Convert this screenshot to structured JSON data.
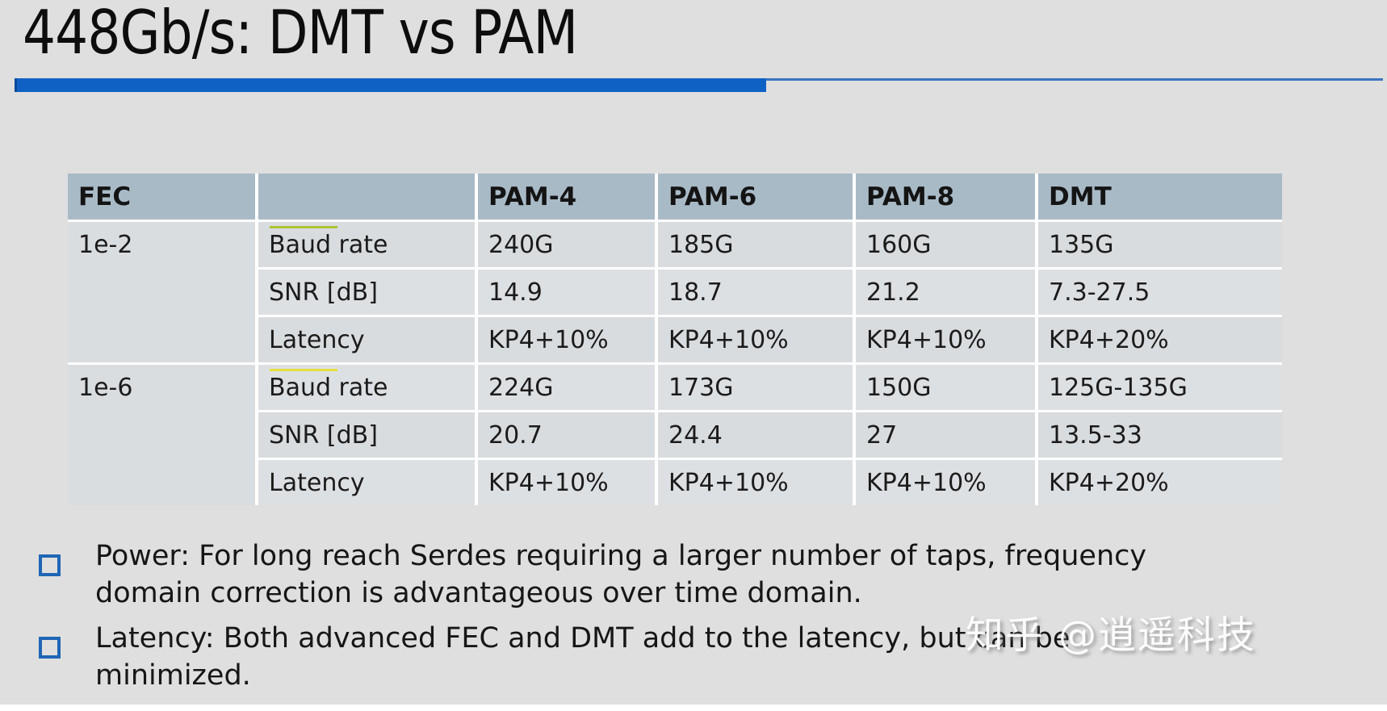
{
  "slide": {
    "title": "448Gb/s: DMT vs PAM",
    "accent_color": "#0f62c4",
    "accent_thin_color": "#3a74c2",
    "background_color": "#dfdfdf",
    "header_bg_color": "#a9bac7"
  },
  "table": {
    "headers": [
      "FEC",
      "",
      "PAM-4",
      "PAM-6",
      "PAM-8",
      "DMT"
    ],
    "groups": [
      {
        "fec": "1e-2",
        "rows": [
          {
            "param": "Baud rate",
            "values": [
              "240G",
              "185G",
              "160G",
              "135G"
            ]
          },
          {
            "param": "SNR [dB]",
            "values": [
              "14.9",
              "18.7",
              "21.2",
              "7.3-27.5"
            ]
          },
          {
            "param": "Latency",
            "values": [
              "KP4+10%",
              "KP4+10%",
              "KP4+10%",
              "KP4+20%"
            ]
          }
        ]
      },
      {
        "fec": "1e-6",
        "rows": [
          {
            "param": "Baud rate",
            "values": [
              "224G",
              "173G",
              "150G",
              "125G-135G"
            ]
          },
          {
            "param": "SNR [dB]",
            "values": [
              "20.7",
              "24.4",
              "27",
              "13.5-33"
            ]
          },
          {
            "param": "Latency",
            "values": [
              "KP4+10%",
              "KP4+10%",
              "KP4+10%",
              "KP4+20%"
            ]
          }
        ]
      }
    ],
    "proofing_marks": [
      {
        "style": "background:#aec432"
      },
      {
        "style": "background:#e6e03a"
      }
    ]
  },
  "bullets": [
    {
      "lines": [
        "Power: For long reach Serdes requiring a larger number of taps, frequency",
        "domain correction is advantageous over time domain."
      ]
    },
    {
      "lines": [
        "Latency: Both advanced FEC and DMT add to the latency, but can be",
        "minimized."
      ]
    }
  ],
  "watermark": "知乎 @逍遥科技",
  "styles": {
    "accent_thin": "background:#3a74c2",
    "accent_thick": "background:#0f62c4"
  }
}
